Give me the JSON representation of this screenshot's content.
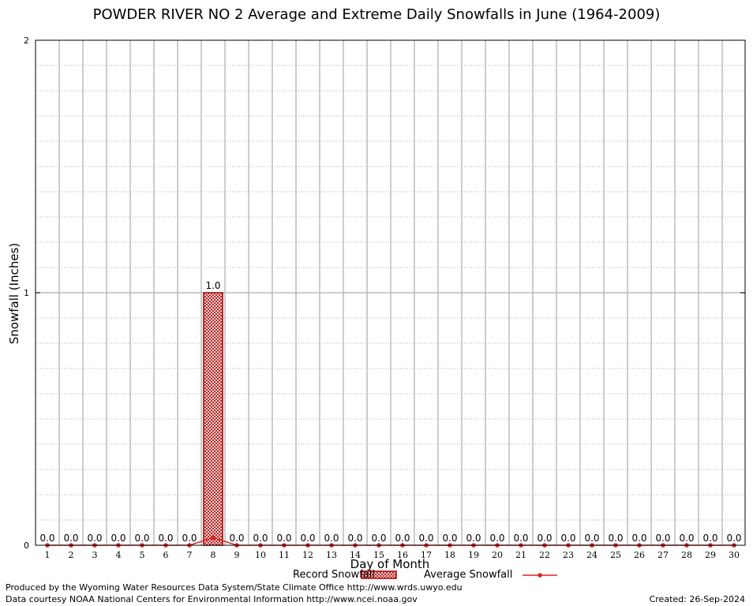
{
  "chart_data": {
    "type": "bar",
    "title": "POWDER RIVER NO 2 Average and Extreme Daily Snowfalls in June (1964-2009)",
    "xlabel": "Day of Month",
    "ylabel": "Snowfall (Inches)",
    "ylim": [
      0,
      2
    ],
    "y_ticks": [
      "0",
      "1",
      "2"
    ],
    "grid": true,
    "legend_position": "bottom",
    "categories": [
      "1",
      "2",
      "3",
      "4",
      "5",
      "6",
      "7",
      "8",
      "9",
      "10",
      "11",
      "12",
      "13",
      "14",
      "15",
      "16",
      "17",
      "18",
      "19",
      "20",
      "21",
      "22",
      "23",
      "24",
      "25",
      "26",
      "27",
      "28",
      "29",
      "30"
    ],
    "series": [
      {
        "name": "Record Snowfall",
        "type": "bar",
        "color": "#cc0000",
        "values": [
          0,
          0,
          0,
          0,
          0,
          0,
          0,
          1.0,
          0,
          0,
          0,
          0,
          0,
          0,
          0,
          0,
          0,
          0,
          0,
          0,
          0,
          0,
          0,
          0,
          0,
          0,
          0,
          0,
          0,
          0
        ],
        "labels": [
          "0.0",
          "0.0",
          "0.0",
          "0.0",
          "0.0",
          "0.0",
          "0.0",
          "1.0",
          "0.0",
          "0.0",
          "0.0",
          "0.0",
          "0.0",
          "0.0",
          "0.0",
          "0.0",
          "0.0",
          "0.0",
          "0.0",
          "0.0",
          "0.0",
          "0.0",
          "0.0",
          "0.0",
          "0.0",
          "0.0",
          "0.0",
          "0.0",
          "0.0",
          "0.0"
        ]
      },
      {
        "name": "Average Snowfall",
        "type": "line",
        "color": "#dd2222",
        "values": [
          0,
          0,
          0,
          0,
          0,
          0,
          0,
          0.03,
          0,
          0,
          0,
          0,
          0,
          0,
          0,
          0,
          0,
          0,
          0,
          0,
          0,
          0,
          0,
          0,
          0,
          0,
          0,
          0,
          0,
          0
        ]
      }
    ]
  },
  "footer": {
    "produced_by": "Produced by the Wyoming Water Resources Data System/State Climate Office http://www.wrds.uwyo.edu",
    "courtesy": "Data courtesy NOAA National Centers for Environmental Information http://www.ncei.noaa.gov",
    "created": "Created:  26-Sep-2024"
  }
}
